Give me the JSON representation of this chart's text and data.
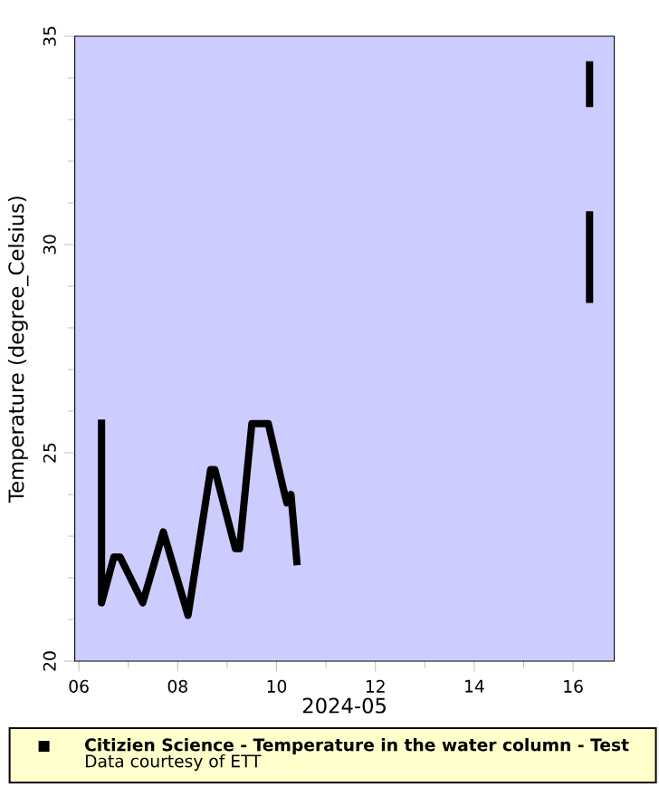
{
  "chart_data": {
    "type": "line",
    "xlabel": "2024-05",
    "ylabel": "Temperature (degree_Celsius)",
    "xlim": [
      "2024-05-05T22:00",
      "2024-05-16T20:00"
    ],
    "xticks": [
      {
        "value": "2024-05-06",
        "label": "06"
      },
      {
        "value": "2024-05-08",
        "label": "08"
      },
      {
        "value": "2024-05-10",
        "label": "10"
      },
      {
        "value": "2024-05-12",
        "label": "12"
      },
      {
        "value": "2024-05-14",
        "label": "14"
      },
      {
        "value": "2024-05-16",
        "label": "16"
      }
    ],
    "ylim": [
      20,
      35
    ],
    "yticks": [
      20,
      25,
      30,
      35
    ],
    "series": [
      {
        "name": "Citizien Science - Temperature in the water column - Test",
        "color": "#000000",
        "x": [
          "2024-05-06T11:00",
          "2024-05-06T11:00",
          "2024-05-06T17:00",
          "2024-05-06T20:00",
          "2024-05-07T07:00",
          "2024-05-07T17:00",
          "2024-05-08T05:00",
          "2024-05-08T16:00",
          "2024-05-08T18:00",
          "2024-05-09T04:00",
          "2024-05-09T06:00",
          "2024-05-09T12:00",
          "2024-05-09T20:00",
          "2024-05-10T03:00",
          "2024-05-10T05:00",
          "2024-05-10T07:00",
          "2024-05-10T10:00"
        ],
        "values": [
          25.8,
          21.4,
          22.5,
          22.5,
          21.4,
          23.1,
          21.1,
          24.6,
          24.6,
          22.7,
          22.7,
          25.7,
          25.7,
          24.2,
          23.8,
          24.0,
          22.3
        ]
      },
      {
        "color": "#000000",
        "x": [
          "2024-05-16T08:00",
          "2024-05-16T08:00"
        ],
        "values": [
          34.4,
          33.3
        ]
      },
      {
        "color": "#000000",
        "x": [
          "2024-05-16T08:00",
          "2024-05-16T08:00"
        ],
        "values": [
          30.8,
          28.6
        ]
      }
    ],
    "marker": "none",
    "line_style": "solid",
    "grid": false,
    "legend": "bottom",
    "annotations": [
      "Data courtesy of ETT"
    ]
  }
}
